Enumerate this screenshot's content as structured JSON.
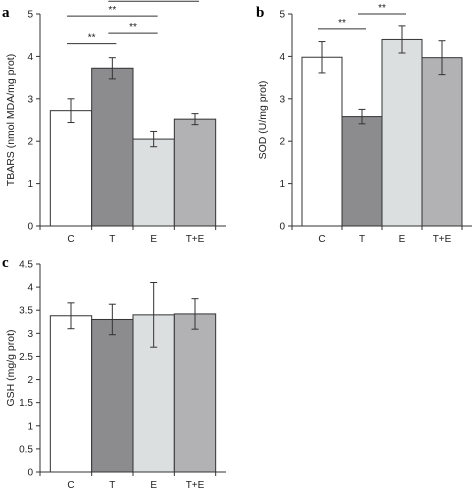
{
  "chart_data": [
    {
      "type": "bar",
      "panel": "a",
      "categories": [
        "C",
        "T",
        "E",
        "T+E"
      ],
      "values": [
        2.72,
        3.72,
        2.05,
        2.52
      ],
      "errors": [
        0.28,
        0.25,
        0.18,
        0.13
      ],
      "colors": [
        "#ffffff",
        "#8c8c8f",
        "#dcdfe0",
        "#b2b2b4"
      ],
      "ylabel": "TBARS (nmol MDA/mg  prot)",
      "ylim": [
        0,
        5
      ],
      "yticks": [
        "0",
        "1",
        "2",
        "3",
        "4",
        "5"
      ],
      "significance": [
        {
          "from": 0,
          "to": 1,
          "label": "**",
          "y": 4.3
        },
        {
          "from": 1,
          "to": 2,
          "label": "**",
          "y": 4.55
        },
        {
          "from": 0,
          "to": 2,
          "label": "**",
          "y": 4.95
        },
        {
          "from": 1,
          "to": 3,
          "label": "**",
          "y": 5.3
        }
      ]
    },
    {
      "type": "bar",
      "panel": "b",
      "categories": [
        "C",
        "T",
        "E",
        "T+E"
      ],
      "values": [
        3.98,
        2.58,
        4.4,
        3.97
      ],
      "errors": [
        0.37,
        0.17,
        0.32,
        0.4
      ],
      "colors": [
        "#ffffff",
        "#8c8c8f",
        "#dcdfe0",
        "#b2b2b4"
      ],
      "ylabel": "SOD (U/mg prot)",
      "ylim": [
        0,
        5
      ],
      "yticks": [
        "0",
        "1",
        "2",
        "3",
        "4",
        "5"
      ],
      "significance": [
        {
          "from": 0,
          "to": 1,
          "label": "**",
          "y": 4.65
        },
        {
          "from": 1,
          "to": 2,
          "label": "**",
          "y": 5.0
        },
        {
          "from": 1,
          "to": 3,
          "label": "**",
          "y": 5.35
        }
      ]
    },
    {
      "type": "bar",
      "panel": "c",
      "categories": [
        "C",
        "T",
        "E",
        "T+E"
      ],
      "values": [
        3.38,
        3.3,
        3.4,
        3.42
      ],
      "errors": [
        0.28,
        0.33,
        0.7,
        0.33
      ],
      "colors": [
        "#ffffff",
        "#8c8c8f",
        "#dcdfe0",
        "#b2b2b4"
      ],
      "ylabel": "GSH (mg/g  prot)",
      "ylim": [
        0,
        4.5
      ],
      "yticks": [
        "0",
        "0.5",
        "1",
        "1.5",
        "2",
        "2.5",
        "3",
        "3.5",
        "4",
        "4.5"
      ],
      "significance": []
    }
  ]
}
